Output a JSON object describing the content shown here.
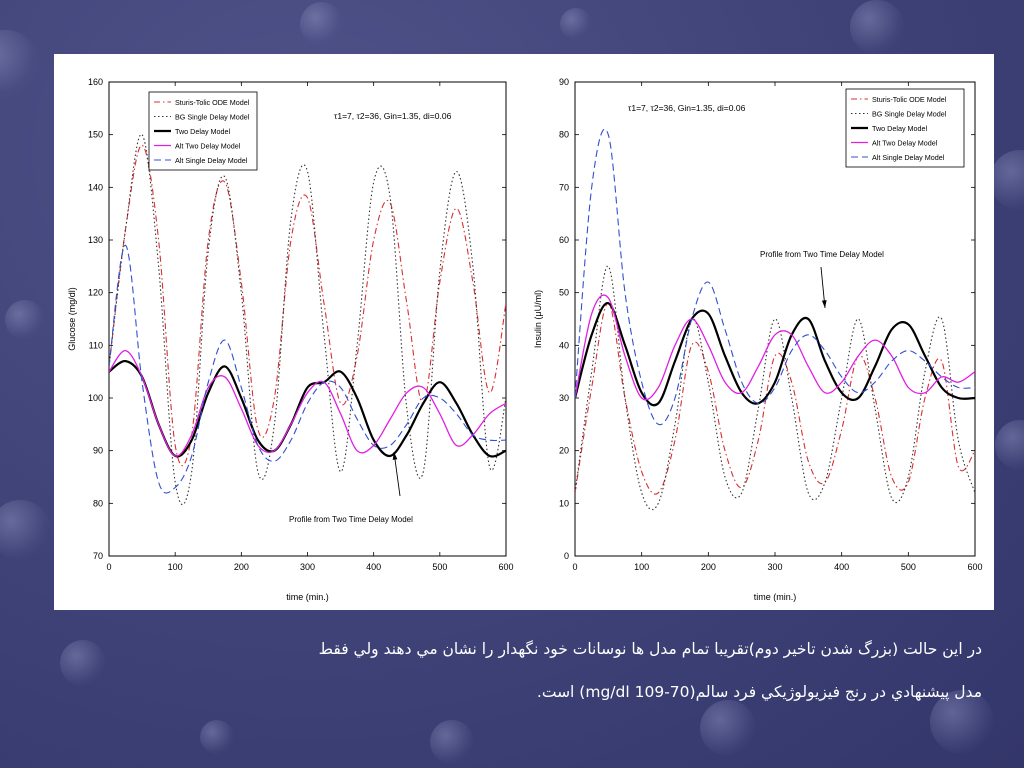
{
  "caption": {
    "line1": "در اين حالت (بزرگ شدن تاخير دوم)تقريبا تمام مدل ها نوسانات خود نگهدار را نشان مي دهند ولي فقط",
    "line2": "مدل پيشنهادي در رنج فيزيولوژيکي فرد سالم(70-109 mg/dl) است."
  },
  "chart_data": [
    {
      "type": "line",
      "title": "",
      "xlabel": "time (min.)",
      "ylabel": "Glucose (mg/dl)",
      "xlim": [
        0,
        600
      ],
      "ylim": [
        70,
        160
      ],
      "xticks": [
        "0",
        "100",
        "200",
        "300",
        "400",
        "500",
        "600"
      ],
      "yticks": [
        "70",
        "80",
        "90",
        "100",
        "110",
        "120",
        "130",
        "140",
        "150",
        "160"
      ],
      "params_label": "τ1=7, τ2=36, Gin=1.35, di=0.06",
      "annotation": "Profile from Two Time Delay Model",
      "legend": "top-left",
      "x": [
        0,
        25,
        50,
        75,
        100,
        125,
        150,
        175,
        200,
        225,
        250,
        275,
        300,
        325,
        350,
        375,
        400,
        425,
        450,
        475,
        500,
        525,
        550,
        575,
        600
      ],
      "series": [
        {
          "name": "Sturis-Tolic ODE Model",
          "color": "#d93030",
          "dash": "dashdot",
          "values": [
            106,
            132,
            148,
            130,
            91,
            93,
            130,
            141,
            122,
            94,
            100,
            130,
            138,
            118,
            99,
            108,
            130,
            137,
            118,
            99,
            122,
            136,
            122,
            101,
            118
          ]
        },
        {
          "name": "BG Single Delay Model",
          "color": "#333333",
          "dash": "dot",
          "values": [
            106,
            132,
            150,
            125,
            84,
            86,
            128,
            142,
            120,
            86,
            95,
            134,
            143,
            112,
            86,
            110,
            141,
            138,
            98,
            86,
            124,
            143,
            125,
            87,
            100
          ]
        },
        {
          "name": "Two Delay Model",
          "color": "#000000",
          "dash": "solid",
          "values": [
            105,
            107,
            104,
            95,
            89,
            92,
            101,
            106,
            100,
            92,
            90,
            95,
            102,
            103,
            105,
            100,
            92,
            89,
            93,
            99,
            103,
            99,
            93,
            89,
            90
          ]
        },
        {
          "name": "Alt Two Delay Model",
          "color": "#e020e0",
          "dash": "solid",
          "values": [
            105,
            109,
            104,
            95,
            89,
            93,
            102,
            104,
            98,
            91,
            90,
            95,
            101,
            103,
            97,
            90,
            91,
            96,
            101,
            102,
            97,
            91,
            93,
            97,
            99
          ]
        },
        {
          "name": "Alt Single Delay Model",
          "color": "#3050d0",
          "dash": "dash",
          "values": [
            106,
            129,
            103,
            84,
            83,
            89,
            103,
            111,
            102,
            91,
            88,
            92,
            99,
            103,
            102,
            96,
            91,
            91,
            95,
            100,
            100,
            97,
            93,
            92,
            92
          ]
        }
      ]
    },
    {
      "type": "line",
      "title": "",
      "xlabel": "time (min.)",
      "ylabel": "Insulin (μU/ml)",
      "xlim": [
        0,
        600
      ],
      "ylim": [
        0,
        90
      ],
      "xticks": [
        "0",
        "100",
        "200",
        "300",
        "400",
        "500",
        "600"
      ],
      "yticks": [
        "0",
        "10",
        "20",
        "30",
        "40",
        "50",
        "60",
        "70",
        "80",
        "90"
      ],
      "params_label": "τ1=7, τ2=36, Gin=1.35, di=0.06",
      "annotation": "Profile from Two Time Delay Model",
      "legend": "top-right",
      "x": [
        0,
        25,
        50,
        75,
        100,
        125,
        150,
        175,
        200,
        225,
        250,
        275,
        300,
        325,
        350,
        375,
        400,
        425,
        450,
        475,
        500,
        525,
        550,
        575,
        600
      ],
      "series": [
        {
          "name": "Sturis-Tolic ODE Model",
          "color": "#d93030",
          "dash": "dashdot",
          "values": [
            12,
            32,
            48,
            30,
            16,
            12,
            22,
            40,
            35,
            20,
            13,
            22,
            38,
            33,
            18,
            14,
            24,
            38,
            30,
            15,
            14,
            30,
            37,
            17,
            20
          ]
        },
        {
          "name": "BG Single Delay Model",
          "color": "#333333",
          "dash": "dot",
          "values": [
            12,
            35,
            55,
            30,
            12,
            10,
            25,
            45,
            33,
            15,
            12,
            28,
            45,
            30,
            12,
            14,
            30,
            45,
            28,
            11,
            15,
            35,
            45,
            22,
            12
          ]
        },
        {
          "name": "Two Delay Model",
          "color": "#000000",
          "dash": "solid",
          "values": [
            30,
            42,
            48,
            40,
            31,
            29,
            37,
            45,
            46,
            38,
            31,
            29,
            33,
            42,
            45,
            37,
            31,
            30,
            36,
            43,
            44,
            38,
            32,
            30,
            30
          ]
        },
        {
          "name": "Alt Two Delay Model",
          "color": "#e020e0",
          "dash": "solid",
          "values": [
            30,
            46,
            49,
            38,
            30,
            32,
            40,
            45,
            40,
            33,
            31,
            36,
            42,
            42,
            36,
            31,
            33,
            38,
            41,
            38,
            32,
            31,
            34,
            33,
            35
          ]
        },
        {
          "name": "Alt Single Delay Model",
          "color": "#3050d0",
          "dash": "dash",
          "values": [
            30,
            70,
            80,
            50,
            33,
            25,
            30,
            45,
            52,
            43,
            33,
            29,
            32,
            39,
            42,
            39,
            34,
            31,
            33,
            37,
            39,
            37,
            34,
            32,
            32
          ]
        }
      ]
    }
  ]
}
